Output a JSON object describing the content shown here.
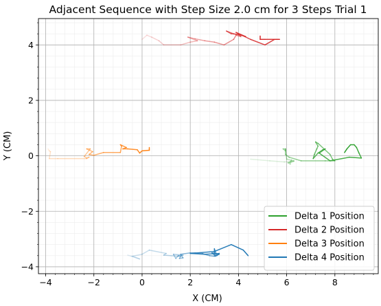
{
  "chart_data": {
    "type": "line",
    "title": "Adjacent Sequence with Step Size 2.0 cm for 3 Steps Trial 1",
    "xlabel": "X (CM)",
    "ylabel": "Y (CM)",
    "xlim": [
      -4.3,
      9.8
    ],
    "ylim": [
      -4.25,
      4.95
    ],
    "xticks": [
      -4,
      -2,
      0,
      2,
      4,
      6,
      8
    ],
    "yticks": [
      -4,
      -2,
      0,
      2,
      4
    ],
    "xtick_labels": [
      "−4",
      "−2",
      "0",
      "2",
      "4",
      "6",
      "8"
    ],
    "ytick_labels": [
      "−4",
      "−2",
      "0",
      "2",
      "4"
    ],
    "grid": true,
    "minor_grid": true,
    "legend_position": "lower right",
    "series": [
      {
        "name": "Delta 1 Position",
        "color": "#2ca02c",
        "points": [
          [
            4.5,
            -0.12
          ],
          [
            5.3,
            -0.18
          ],
          [
            5.9,
            -0.22
          ],
          [
            6.3,
            -0.2
          ],
          [
            6.1,
            -0.25
          ],
          [
            6.2,
            -0.15
          ],
          [
            6.15,
            -0.3
          ],
          [
            6.05,
            -0.25
          ],
          [
            6.3,
            -0.18
          ],
          [
            6.0,
            -0.12
          ],
          [
            5.95,
            0.25
          ],
          [
            5.85,
            0.25
          ],
          [
            5.95,
            0.18
          ],
          [
            5.95,
            0.25
          ],
          [
            5.95,
            0.05
          ],
          [
            6.1,
            -0.05
          ],
          [
            6.6,
            -0.18
          ],
          [
            7.6,
            -0.18
          ],
          [
            8.0,
            -0.18
          ],
          [
            7.9,
            -0.12
          ],
          [
            7.8,
            0.05
          ],
          [
            7.3,
            0.45
          ],
          [
            7.2,
            0.5
          ],
          [
            7.3,
            0.35
          ],
          [
            7.25,
            0.25
          ],
          [
            7.15,
            0.05
          ],
          [
            7.1,
            -0.1
          ],
          [
            7.3,
            0.1
          ],
          [
            7.5,
            0.22
          ],
          [
            7.6,
            0.25
          ],
          [
            7.35,
            0.1
          ],
          [
            7.8,
            -0.18
          ],
          [
            8.6,
            -0.05
          ],
          [
            9.1,
            -0.08
          ],
          [
            9.0,
            0.1
          ],
          [
            8.9,
            0.3
          ],
          [
            8.8,
            0.4
          ],
          [
            8.65,
            0.4
          ],
          [
            8.5,
            0.25
          ],
          [
            8.4,
            0.12
          ]
        ]
      },
      {
        "name": "Delta 2 Position",
        "color": "#d62728",
        "points": [
          [
            0.0,
            4.2
          ],
          [
            0.2,
            4.35
          ],
          [
            0.4,
            4.28
          ],
          [
            0.7,
            4.15
          ],
          [
            0.9,
            4.0
          ],
          [
            1.6,
            4.0
          ],
          [
            2.0,
            4.1
          ],
          [
            2.3,
            4.15
          ],
          [
            1.9,
            4.28
          ],
          [
            2.2,
            4.22
          ],
          [
            2.6,
            4.15
          ],
          [
            3.0,
            4.1
          ],
          [
            3.4,
            4.0
          ],
          [
            3.8,
            4.2
          ],
          [
            3.9,
            4.35
          ],
          [
            4.1,
            4.3
          ],
          [
            4.0,
            4.38
          ],
          [
            3.7,
            4.4
          ],
          [
            3.5,
            4.5
          ],
          [
            3.8,
            4.4
          ],
          [
            4.1,
            4.35
          ],
          [
            4.3,
            4.3
          ],
          [
            3.9,
            4.45
          ],
          [
            4.5,
            4.2
          ],
          [
            5.1,
            4.0
          ],
          [
            5.5,
            4.2
          ],
          [
            5.7,
            4.2
          ],
          [
            5.1,
            4.2
          ],
          [
            4.9,
            4.2
          ],
          [
            4.9,
            4.32
          ]
        ]
      },
      {
        "name": "Delta 3 Position",
        "color": "#ff7f0e",
        "points": [
          [
            -3.9,
            0.25
          ],
          [
            -3.85,
            0.18
          ],
          [
            -3.8,
            0.15
          ],
          [
            -3.85,
            -0.1
          ],
          [
            -3.5,
            -0.1
          ],
          [
            -2.3,
            -0.1
          ],
          [
            -2.2,
            -0.05
          ],
          [
            -2.3,
            -0.08
          ],
          [
            -2.4,
            -0.02
          ],
          [
            -2.15,
            0.25
          ],
          [
            -2.3,
            0.25
          ],
          [
            -2.05,
            0.15
          ],
          [
            -2.2,
            0.05
          ],
          [
            -2.0,
            0.02
          ],
          [
            -1.6,
            0.12
          ],
          [
            -0.9,
            0.12
          ],
          [
            -0.85,
            0.35
          ],
          [
            -0.9,
            0.4
          ],
          [
            -0.65,
            0.3
          ],
          [
            -0.8,
            0.25
          ],
          [
            -0.6,
            0.25
          ],
          [
            -0.2,
            0.22
          ],
          [
            -0.1,
            0.1
          ],
          [
            0.0,
            0.18
          ],
          [
            0.3,
            0.2
          ],
          [
            0.3,
            0.3
          ]
        ]
      },
      {
        "name": "Delta 4 Position",
        "color": "#1f77b4",
        "points": [
          [
            -0.6,
            -3.58
          ],
          [
            -0.45,
            -3.62
          ],
          [
            -0.1,
            -3.72
          ],
          [
            -0.4,
            -3.62
          ],
          [
            0.0,
            -3.55
          ],
          [
            0.3,
            -3.4
          ],
          [
            1.0,
            -3.52
          ],
          [
            0.9,
            -3.58
          ],
          [
            1.5,
            -3.62
          ],
          [
            1.7,
            -3.58
          ],
          [
            1.3,
            -3.55
          ],
          [
            1.4,
            -3.7
          ],
          [
            1.5,
            -3.6
          ],
          [
            1.6,
            -3.62
          ],
          [
            1.55,
            -3.7
          ],
          [
            1.7,
            -3.68
          ],
          [
            1.6,
            -3.55
          ],
          [
            2.0,
            -3.5
          ],
          [
            2.2,
            -3.5
          ],
          [
            2.5,
            -3.52
          ],
          [
            2.6,
            -3.55
          ],
          [
            2.8,
            -3.6
          ],
          [
            3.0,
            -3.62
          ],
          [
            3.2,
            -3.55
          ],
          [
            2.9,
            -3.5
          ],
          [
            3.05,
            -3.62
          ],
          [
            3.0,
            -3.5
          ],
          [
            3.0,
            -3.35
          ],
          [
            3.1,
            -3.6
          ],
          [
            3.2,
            -3.52
          ],
          [
            2.6,
            -3.55
          ],
          [
            2.0,
            -3.52
          ],
          [
            3.0,
            -3.45
          ],
          [
            3.7,
            -3.2
          ],
          [
            4.2,
            -3.4
          ],
          [
            4.4,
            -3.6
          ]
        ]
      }
    ]
  }
}
